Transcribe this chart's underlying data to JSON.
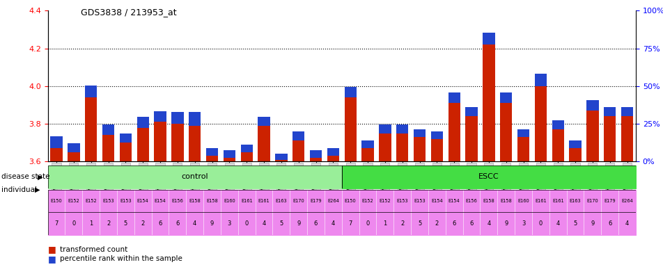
{
  "title": "GDS3838 / 213953_at",
  "samples": [
    "GSM509787",
    "GSM509788",
    "GSM509789",
    "GSM509790",
    "GSM509791",
    "GSM509792",
    "GSM509793",
    "GSM509794",
    "GSM509795",
    "GSM509796",
    "GSM509797",
    "GSM509798",
    "GSM509799",
    "GSM509800",
    "GSM509801",
    "GSM509802",
    "GSM509803",
    "GSM509804",
    "GSM509805",
    "GSM509806",
    "GSM509807",
    "GSM509808",
    "GSM509809",
    "GSM509810",
    "GSM509811",
    "GSM509812",
    "GSM509813",
    "GSM509814",
    "GSM509815",
    "GSM509816",
    "GSM509817",
    "GSM509818",
    "GSM509819",
    "GSM509820"
  ],
  "transformed_count": [
    3.67,
    3.65,
    3.94,
    3.74,
    3.7,
    3.78,
    3.81,
    3.8,
    3.79,
    3.63,
    3.62,
    3.65,
    3.79,
    3.61,
    3.71,
    3.62,
    3.63,
    3.94,
    3.67,
    3.75,
    3.75,
    3.73,
    3.72,
    3.91,
    3.84,
    4.22,
    3.91,
    3.73,
    4.0,
    3.77,
    3.67,
    3.87,
    3.84,
    3.84
  ],
  "percentile_rank": [
    8,
    6,
    8,
    7,
    6,
    7,
    7,
    8,
    9,
    5,
    5,
    5,
    6,
    4,
    6,
    5,
    5,
    7,
    5,
    6,
    6,
    5,
    5,
    7,
    6,
    8,
    7,
    5,
    8,
    6,
    5,
    7,
    6,
    6
  ],
  "disease_state": [
    "control",
    "control",
    "control",
    "control",
    "control",
    "control",
    "control",
    "control",
    "control",
    "control",
    "control",
    "control",
    "control",
    "control",
    "control",
    "control",
    "control",
    "ESCC",
    "ESCC",
    "ESCC",
    "ESCC",
    "ESCC",
    "ESCC",
    "ESCC",
    "ESCC",
    "ESCC",
    "ESCC",
    "ESCC",
    "ESCC",
    "ESCC",
    "ESCC",
    "ESCC",
    "ESCC",
    "ESCC"
  ],
  "individual_top": [
    "E150",
    "E152",
    "E152",
    "E153",
    "E153",
    "E154",
    "E154",
    "E156",
    "E158",
    "E158",
    "E160",
    "E161",
    "E161",
    "E163",
    "E170",
    "E179",
    "E264",
    "E150",
    "E152",
    "E152",
    "E153",
    "E153",
    "E154",
    "E154",
    "E156",
    "E158",
    "E158",
    "E160",
    "E161",
    "E161",
    "E163",
    "E170",
    "E179",
    "E264"
  ],
  "individual_bot": [
    "7",
    "0",
    "1",
    "2",
    "5",
    "2",
    "6",
    "6",
    "4",
    "9",
    "3",
    "0",
    "4",
    "5",
    "9",
    "6",
    "4",
    "7",
    "0",
    "1",
    "2",
    "5",
    "2",
    "6",
    "6",
    "4",
    "9",
    "3",
    "0",
    "4",
    "5",
    "9",
    "6",
    "4"
  ],
  "ylim_left": [
    3.6,
    4.4
  ],
  "ylim_right": [
    0,
    100
  ],
  "yticks_left": [
    3.6,
    3.8,
    4.0,
    4.2,
    4.4
  ],
  "yticks_right": [
    0,
    25,
    50,
    75,
    100
  ],
  "baseline": 3.6,
  "bar_color_red": "#cc2200",
  "bar_color_blue": "#2244cc",
  "control_color": "#99ee99",
  "escc_color": "#44dd44",
  "individual_color": "#ee88ee",
  "dotted_lines": [
    3.8,
    4.0,
    4.2
  ],
  "n_control": 17,
  "n_escc": 17
}
